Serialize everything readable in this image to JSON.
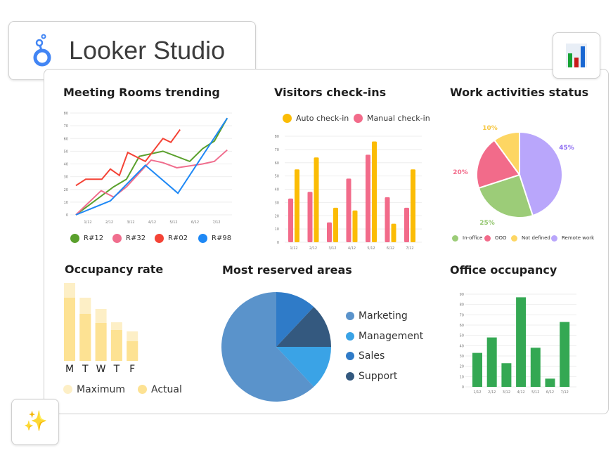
{
  "app": {
    "title": "Looker Studio",
    "logo_icon": "looker-studio-logo",
    "chart_icon": "bar-chart-icon",
    "sparkle_icon": "sparkles-icon"
  },
  "charts": {
    "meeting": {
      "title": "Meeting Rooms trending"
    },
    "visitors": {
      "title": "Visitors check-ins"
    },
    "work": {
      "title": "Work activities status"
    },
    "occupancy": {
      "title": "Occupancy rate"
    },
    "areas": {
      "title": "Most reserved areas"
    },
    "office": {
      "title": "Office occupancy"
    }
  },
  "chart_data": [
    {
      "id": "meeting",
      "type": "line",
      "title": "Meeting Rooms trending",
      "ylim": [
        0,
        80
      ],
      "yticks": [
        0,
        10,
        20,
        30,
        40,
        50,
        60,
        70,
        80
      ],
      "xticks": [
        "1/12",
        "2/12",
        "3/12",
        "4/12",
        "5/12",
        "6/12",
        "7/12"
      ],
      "grid": true,
      "legend": "bottom",
      "series": [
        {
          "name": "R#12",
          "color": "#5aa02c",
          "points": [
            [
              0.44,
              0
            ],
            [
              2.2,
              22
            ],
            [
              2.8,
              28
            ],
            [
              3.4,
              46
            ],
            [
              4.5,
              50
            ],
            [
              5.75,
              42
            ],
            [
              6.35,
              52
            ],
            [
              6.9,
              58
            ],
            [
              7.5,
              76
            ]
          ]
        },
        {
          "name": "R#32",
          "color": "#f06e8e",
          "points": [
            [
              0.44,
              0
            ],
            [
              1.62,
              19
            ],
            [
              2.2,
              14
            ],
            [
              2.8,
              22
            ],
            [
              3.95,
              43
            ],
            [
              4.5,
              41
            ],
            [
              5.15,
              37
            ],
            [
              6.35,
              40
            ],
            [
              6.9,
              42
            ],
            [
              7.5,
              51
            ]
          ]
        },
        {
          "name": "R#02",
          "color": "#f44336",
          "points": [
            [
              0.44,
              23
            ],
            [
              0.9,
              28
            ],
            [
              1.65,
              28
            ],
            [
              2.05,
              36
            ],
            [
              2.47,
              31
            ],
            [
              2.86,
              49
            ],
            [
              3.68,
              42
            ],
            [
              4.5,
              60
            ],
            [
              4.87,
              57
            ],
            [
              5.3,
              67
            ]
          ]
        },
        {
          "name": "R#98",
          "color": "#1e88f5",
          "points": [
            [
              0.44,
              0
            ],
            [
              2.05,
              11
            ],
            [
              3.68,
              39
            ],
            [
              5.2,
              17
            ],
            [
              7.5,
              76
            ]
          ]
        }
      ]
    },
    {
      "id": "visitors",
      "type": "bar",
      "title": "Visitors check-ins",
      "ylim": [
        0,
        80
      ],
      "yticks": [
        0,
        10,
        20,
        30,
        40,
        50,
        60,
        70,
        80
      ],
      "categories": [
        "1/12",
        "2/12",
        "3/12",
        "4/12",
        "5/12",
        "6/12",
        "7/12"
      ],
      "grid": true,
      "legend": "top",
      "series": [
        {
          "name": "Manual check-in",
          "color": "#f26b8a",
          "values": [
            33,
            38,
            15,
            48,
            66,
            34,
            26
          ]
        },
        {
          "name": "Auto check-in",
          "color": "#fbbc05",
          "values": [
            55,
            64,
            26,
            24,
            76,
            14,
            55
          ]
        }
      ],
      "legend_order": [
        "Auto check-in",
        "Manual check-in"
      ]
    },
    {
      "id": "work",
      "type": "pie",
      "title": "Work activities status",
      "legend": "bottom",
      "slices": [
        {
          "name": "Remote work",
          "value": 45,
          "label": "45%",
          "color": "#b9a6fb",
          "label_color": "#8c6cf2"
        },
        {
          "name": "In-office",
          "value": 25,
          "label": "25%",
          "color": "#9ccc78",
          "label_color": "#93c66f"
        },
        {
          "name": "OOO",
          "value": 20,
          "label": "20%",
          "color": "#f26b8a",
          "label_color": "#f26b8a"
        },
        {
          "name": "Not defined",
          "value": 10,
          "label": "10%",
          "color": "#fdd663",
          "label_color": "#f6c744"
        }
      ],
      "legend_order": [
        "In-office",
        "OOO",
        "Not defined",
        "Remote work"
      ]
    },
    {
      "id": "occupancy",
      "type": "bar",
      "title": "Occupancy rate",
      "categories": [
        "M",
        "T",
        "W",
        "T",
        "F"
      ],
      "legend": "bottom",
      "series": [
        {
          "name": "Maximum",
          "color": "#fdefc6",
          "values": [
            111,
            90,
            74,
            55,
            42
          ]
        },
        {
          "name": "Actual",
          "color": "#fde293",
          "values": [
            90,
            67,
            54,
            44,
            28
          ]
        }
      ]
    },
    {
      "id": "areas",
      "type": "pie",
      "title": "Most reserved areas",
      "legend": "right",
      "slices": [
        {
          "name": "Sales",
          "value": 12,
          "color": "#2f7bc8"
        },
        {
          "name": "Support",
          "value": 13,
          "color": "#34597f"
        },
        {
          "name": "Management",
          "value": 13,
          "color": "#3aa3e6"
        },
        {
          "name": "Marketing",
          "value": 62,
          "color": "#5a93cb"
        }
      ],
      "legend_order": [
        "Marketing",
        "Management",
        "Sales",
        "Support"
      ]
    },
    {
      "id": "office",
      "type": "bar",
      "title": "Office occupancy",
      "ylim": [
        0,
        90
      ],
      "yticks": [
        0,
        10,
        20,
        30,
        40,
        50,
        60,
        70,
        80,
        90
      ],
      "categories": [
        "1/12",
        "2/12",
        "3/12",
        "4/12",
        "5/12",
        "6/12",
        "7/12"
      ],
      "grid": true,
      "series": [
        {
          "color": "#34a853",
          "values": [
            33,
            48,
            23,
            87,
            38,
            8,
            63
          ]
        }
      ]
    }
  ]
}
